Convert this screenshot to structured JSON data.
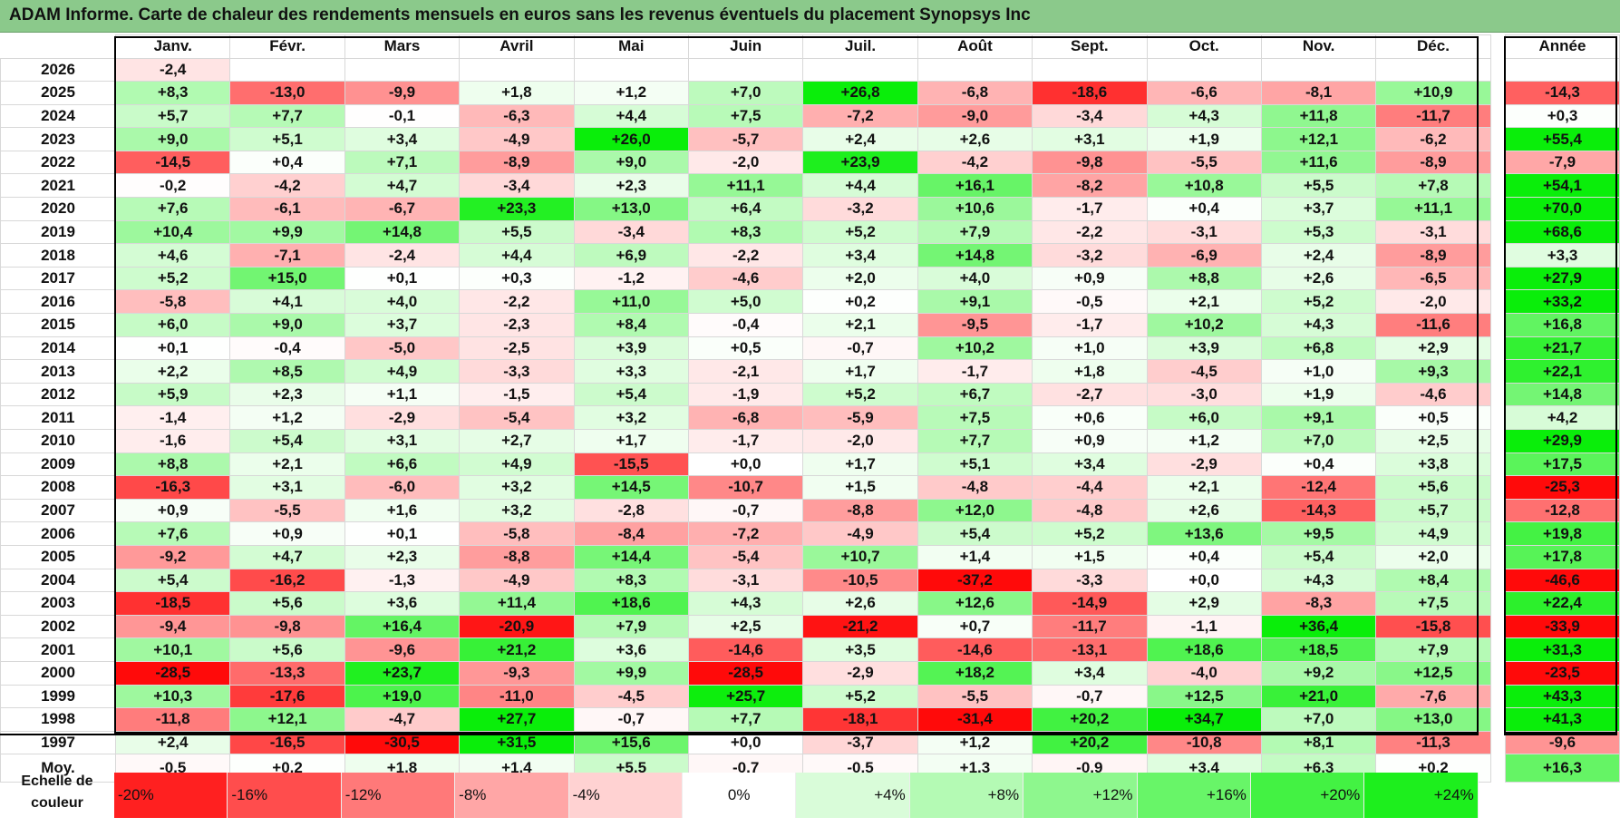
{
  "title": "ADAM Informe. Carte de chaleur des rendements mensuels en euros sans les revenus éventuels du placement Synopsys Inc",
  "chart_data": {
    "type": "heatmap",
    "title": "ADAM Informe. Carte de chaleur des rendements mensuels en euros sans les revenus éventuels du placement Synopsys Inc",
    "months": [
      "Janv.",
      "Févr.",
      "Mars",
      "Avril",
      "Mai",
      "Juin",
      "Juil.",
      "Août",
      "Sept.",
      "Oct.",
      "Nov.",
      "Déc."
    ],
    "year_header": "Année",
    "rows": [
      {
        "year": "2026",
        "values": [
          "-2,4",
          "",
          "",
          "",
          "",
          "",
          "",
          "",
          "",
          "",
          "",
          ""
        ],
        "annual": ""
      },
      {
        "year": "2025",
        "values": [
          "+8,3",
          "-13,0",
          "-9,9",
          "+1,8",
          "+1,2",
          "+7,0",
          "+26,8",
          "-6,8",
          "-18,6",
          "-6,6",
          "-8,1",
          "+10,9"
        ],
        "annual": "-14,3"
      },
      {
        "year": "2024",
        "values": [
          "+5,7",
          "+7,7",
          "-0,1",
          "-6,3",
          "+4,4",
          "+7,5",
          "-7,2",
          "-9,0",
          "-3,4",
          "+4,3",
          "+11,8",
          "-11,7"
        ],
        "annual": "+0,3"
      },
      {
        "year": "2023",
        "values": [
          "+9,0",
          "+5,1",
          "+3,4",
          "-4,9",
          "+26,0",
          "-5,7",
          "+2,4",
          "+2,6",
          "+3,1",
          "+1,9",
          "+12,1",
          "-6,2"
        ],
        "annual": "+55,4"
      },
      {
        "year": "2022",
        "values": [
          "-14,5",
          "+0,4",
          "+7,1",
          "-8,9",
          "+9,0",
          "-2,0",
          "+23,9",
          "-4,2",
          "-9,8",
          "-5,5",
          "+11,6",
          "-8,9"
        ],
        "annual": "-7,9"
      },
      {
        "year": "2021",
        "values": [
          "-0,2",
          "-4,2",
          "+4,7",
          "-3,4",
          "+2,3",
          "+11,1",
          "+4,4",
          "+16,1",
          "-8,2",
          "+10,8",
          "+5,5",
          "+7,8"
        ],
        "annual": "+54,1"
      },
      {
        "year": "2020",
        "values": [
          "+7,6",
          "-6,1",
          "-6,7",
          "+23,3",
          "+13,0",
          "+6,4",
          "-3,2",
          "+10,6",
          "-1,7",
          "+0,4",
          "+3,7",
          "+11,1"
        ],
        "annual": "+70,0"
      },
      {
        "year": "2019",
        "values": [
          "+10,4",
          "+9,9",
          "+14,8",
          "+5,5",
          "-3,4",
          "+8,3",
          "+5,2",
          "+7,9",
          "-2,2",
          "-3,1",
          "+5,3",
          "-3,1"
        ],
        "annual": "+68,6"
      },
      {
        "year": "2018",
        "values": [
          "+4,6",
          "-7,1",
          "-2,4",
          "+4,4",
          "+6,9",
          "-2,2",
          "+3,4",
          "+14,8",
          "-3,2",
          "-6,9",
          "+2,4",
          "-8,9"
        ],
        "annual": "+3,3"
      },
      {
        "year": "2017",
        "values": [
          "+5,2",
          "+15,0",
          "+0,1",
          "+0,3",
          "-1,2",
          "-4,6",
          "+2,0",
          "+4,0",
          "+0,9",
          "+8,8",
          "+2,6",
          "-6,5"
        ],
        "annual": "+27,9"
      },
      {
        "year": "2016",
        "values": [
          "-5,8",
          "+4,1",
          "+4,0",
          "-2,2",
          "+11,0",
          "+5,0",
          "+0,2",
          "+9,1",
          "-0,5",
          "+2,1",
          "+5,2",
          "-2,0"
        ],
        "annual": "+33,2"
      },
      {
        "year": "2015",
        "values": [
          "+6,0",
          "+9,0",
          "+3,7",
          "-2,3",
          "+8,4",
          "-0,4",
          "+2,1",
          "-9,5",
          "-1,7",
          "+10,2",
          "+4,3",
          "-11,6"
        ],
        "annual": "+16,8"
      },
      {
        "year": "2014",
        "values": [
          "+0,1",
          "-0,4",
          "-5,0",
          "-2,5",
          "+3,9",
          "+0,5",
          "-0,7",
          "+10,2",
          "+1,0",
          "+3,9",
          "+6,8",
          "+2,9"
        ],
        "annual": "+21,7"
      },
      {
        "year": "2013",
        "values": [
          "+2,2",
          "+8,5",
          "+4,9",
          "-3,3",
          "+3,3",
          "-2,1",
          "+1,7",
          "-1,7",
          "+1,8",
          "-4,5",
          "+1,0",
          "+9,3"
        ],
        "annual": "+22,1"
      },
      {
        "year": "2012",
        "values": [
          "+5,9",
          "+2,3",
          "+1,1",
          "-1,5",
          "+5,4",
          "-1,9",
          "+5,2",
          "+6,7",
          "-2,7",
          "-3,0",
          "+1,9",
          "-4,6"
        ],
        "annual": "+14,8"
      },
      {
        "year": "2011",
        "values": [
          "-1,4",
          "+1,2",
          "-2,9",
          "-5,4",
          "+3,2",
          "-6,8",
          "-5,9",
          "+7,5",
          "+0,6",
          "+6,0",
          "+9,1",
          "+0,5"
        ],
        "annual": "+4,2"
      },
      {
        "year": "2010",
        "values": [
          "-1,6",
          "+5,4",
          "+3,1",
          "+2,7",
          "+1,7",
          "-1,7",
          "-2,0",
          "+7,7",
          "+0,9",
          "+1,2",
          "+7,0",
          "+2,5"
        ],
        "annual": "+29,9"
      },
      {
        "year": "2009",
        "values": [
          "+8,8",
          "+2,1",
          "+6,6",
          "+4,9",
          "-15,5",
          "+0,0",
          "+1,7",
          "+5,1",
          "+3,4",
          "-2,9",
          "+0,4",
          "+3,8"
        ],
        "annual": "+17,5"
      },
      {
        "year": "2008",
        "values": [
          "-16,3",
          "+3,1",
          "-6,0",
          "+3,2",
          "+14,5",
          "-10,7",
          "+1,5",
          "-4,8",
          "-4,4",
          "+2,1",
          "-12,4",
          "+5,6"
        ],
        "annual": "-25,3"
      },
      {
        "year": "2007",
        "values": [
          "+0,9",
          "-5,5",
          "+1,6",
          "+3,2",
          "-2,8",
          "-0,7",
          "-8,8",
          "+12,0",
          "-4,8",
          "+2,6",
          "-14,3",
          "+5,7"
        ],
        "annual": "-12,8"
      },
      {
        "year": "2006",
        "values": [
          "+7,6",
          "+0,9",
          "+0,1",
          "-5,8",
          "-8,4",
          "-7,2",
          "-4,9",
          "+5,4",
          "+5,2",
          "+13,6",
          "+9,5",
          "+4,9"
        ],
        "annual": "+19,8"
      },
      {
        "year": "2005",
        "values": [
          "-9,2",
          "+4,7",
          "+2,3",
          "-8,8",
          "+14,4",
          "-5,4",
          "+10,7",
          "+1,4",
          "+1,5",
          "+0,4",
          "+5,4",
          "+2,0"
        ],
        "annual": "+17,8"
      },
      {
        "year": "2004",
        "values": [
          "+5,4",
          "-16,2",
          "-1,3",
          "-4,9",
          "+8,3",
          "-3,1",
          "-10,5",
          "-37,2",
          "-3,3",
          "+0,0",
          "+4,3",
          "+8,4"
        ],
        "annual": "-46,6"
      },
      {
        "year": "2003",
        "values": [
          "-18,5",
          "+5,6",
          "+3,6",
          "+11,4",
          "+18,6",
          "+4,3",
          "+2,6",
          "+12,6",
          "-14,9",
          "+2,9",
          "-8,3",
          "+7,5"
        ],
        "annual": "+22,4"
      },
      {
        "year": "2002",
        "values": [
          "-9,4",
          "-9,8",
          "+16,4",
          "-20,9",
          "+7,9",
          "+2,5",
          "-21,2",
          "+0,7",
          "-11,7",
          "-1,1",
          "+36,4",
          "-15,8"
        ],
        "annual": "-33,9"
      },
      {
        "year": "2001",
        "values": [
          "+10,1",
          "+5,6",
          "-9,6",
          "+21,2",
          "+3,6",
          "-14,6",
          "+3,5",
          "-14,6",
          "-13,1",
          "+18,6",
          "+18,5",
          "+7,9"
        ],
        "annual": "+31,3"
      },
      {
        "year": "2000",
        "values": [
          "-28,5",
          "-13,3",
          "+23,7",
          "-9,3",
          "+9,9",
          "-28,5",
          "-2,9",
          "+18,2",
          "+3,4",
          "-4,0",
          "+9,2",
          "+12,5"
        ],
        "annual": "-23,5"
      },
      {
        "year": "1999",
        "values": [
          "+10,3",
          "-17,6",
          "+19,0",
          "-11,0",
          "-4,5",
          "+25,7",
          "+5,2",
          "-5,5",
          "-0,7",
          "+12,5",
          "+21,0",
          "-7,6"
        ],
        "annual": "+43,3"
      },
      {
        "year": "1998",
        "values": [
          "-11,8",
          "+12,1",
          "-4,7",
          "+27,7",
          "-0,7",
          "+7,7",
          "-18,1",
          "-31,4",
          "+20,2",
          "+34,7",
          "+7,0",
          "+13,0"
        ],
        "annual": "+41,3"
      },
      {
        "year": "1997",
        "values": [
          "+2,4",
          "-16,5",
          "-30,5",
          "+31,5",
          "+15,6",
          "+0,0",
          "-3,7",
          "+1,2",
          "+20,2",
          "-10,8",
          "+8,1",
          "-11,3"
        ],
        "annual": "-9,6"
      }
    ],
    "average": {
      "label": "Moy.",
      "values": [
        "-0,5",
        "+0,2",
        "+1,8",
        "+1,4",
        "+5,5",
        "-0,7",
        "-0,5",
        "+1,3",
        "-0,9",
        "+3,4",
        "+6,3",
        "+0,2"
      ],
      "annual": "+16,3"
    },
    "scale": {
      "label": "Echelle de couleur",
      "stops": [
        "-20%",
        "-16%",
        "-12%",
        "-8%",
        "-4%",
        "0%",
        "+4%",
        "+8%",
        "+12%",
        "+16%",
        "+20%",
        "+24%"
      ],
      "stop_values": [
        -20,
        -16,
        -12,
        -8,
        -4,
        0,
        4,
        8,
        12,
        16,
        20,
        24
      ]
    }
  },
  "colors": {
    "title_bg": "#8bc98b",
    "neg_max": "#ff0000",
    "pos_max": "#00ee00",
    "neutral": "#ffffff"
  }
}
